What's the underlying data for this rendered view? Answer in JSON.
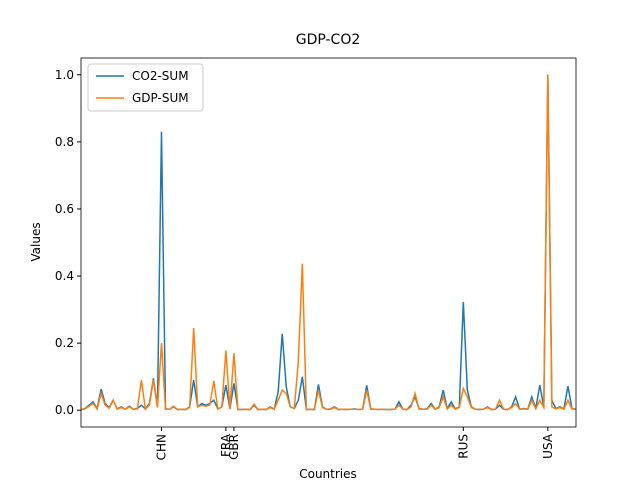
{
  "chart_data": {
    "type": "line",
    "title": "GDP-CO2",
    "xlabel": "Countries",
    "ylabel": "Values",
    "categories": [
      null,
      null,
      null,
      null,
      null,
      null,
      null,
      null,
      null,
      null,
      null,
      null,
      null,
      null,
      null,
      null,
      null,
      null,
      null,
      null,
      "CHN",
      null,
      null,
      null,
      null,
      null,
      null,
      null,
      null,
      null,
      null,
      null,
      null,
      null,
      null,
      null,
      "FRA",
      null,
      "GBR",
      null,
      null,
      null,
      null,
      null,
      null,
      null,
      null,
      null,
      null,
      null,
      null,
      null,
      null,
      null,
      null,
      null,
      null,
      null,
      null,
      null,
      null,
      null,
      null,
      null,
      null,
      null,
      null,
      null,
      null,
      null,
      null,
      null,
      null,
      null,
      null,
      null,
      null,
      null,
      null,
      null,
      null,
      null,
      null,
      null,
      null,
      null,
      null,
      null,
      null,
      null,
      null,
      null,
      null,
      null,
      null,
      "RUS",
      null,
      null,
      null,
      null,
      null,
      null,
      null,
      null,
      null,
      null,
      null,
      null,
      null,
      null,
      null,
      null,
      null,
      null,
      null,
      null,
      "USA",
      null,
      null,
      null,
      null,
      null,
      null,
      null
    ],
    "series": [
      {
        "name": "CO2-SUM",
        "color": "#1f77b4",
        "values": [
          0.002,
          0.005,
          0.015,
          0.025,
          0.005,
          0.063,
          0.02,
          0.008,
          0.03,
          0.004,
          0.01,
          0.003,
          0.012,
          0.003,
          0.005,
          0.015,
          0.004,
          0.02,
          0.095,
          0.01,
          0.83,
          0.004,
          0.003,
          0.01,
          0.002,
          0.003,
          0.002,
          0.01,
          0.09,
          0.01,
          0.02,
          0.015,
          0.02,
          0.03,
          0.004,
          0.01,
          0.075,
          0.004,
          0.08,
          0.002,
          0.002,
          0.003,
          0.002,
          0.015,
          0.002,
          0.003,
          0.002,
          0.01,
          0.003,
          0.055,
          0.228,
          0.07,
          0.01,
          0.005,
          0.03,
          0.1,
          0.002,
          0.003,
          0.002,
          0.077,
          0.01,
          0.003,
          0.004,
          0.01,
          0.002,
          0.003,
          0.002,
          0.003,
          0.004,
          0.002,
          0.003,
          0.074,
          0.004,
          0.003,
          0.002,
          0.003,
          0.002,
          0.002,
          0.003,
          0.025,
          0.003,
          0.002,
          0.015,
          0.04,
          0.005,
          0.003,
          0.004,
          0.02,
          0.003,
          0.01,
          0.06,
          0.005,
          0.025,
          0.004,
          0.01,
          0.323,
          0.06,
          0.01,
          0.003,
          0.002,
          0.003,
          0.01,
          0.002,
          0.003,
          0.015,
          0.003,
          0.002,
          0.01,
          0.04,
          0.003,
          0.005,
          0.003,
          0.04,
          0.005,
          0.075,
          0.01,
          1.0,
          0.03,
          0.005,
          0.01,
          0.004,
          0.072,
          0.005,
          0.003
        ]
      },
      {
        "name": "GDP-SUM",
        "color": "#ff7f0e",
        "values": [
          0.002,
          0.004,
          0.012,
          0.02,
          0.004,
          0.05,
          0.015,
          0.006,
          0.03,
          0.003,
          0.008,
          0.003,
          0.01,
          0.003,
          0.004,
          0.09,
          0.003,
          0.015,
          0.09,
          0.008,
          0.2,
          0.003,
          0.003,
          0.012,
          0.002,
          0.003,
          0.002,
          0.008,
          0.245,
          0.01,
          0.015,
          0.012,
          0.015,
          0.087,
          0.003,
          0.01,
          0.178,
          0.003,
          0.17,
          0.002,
          0.002,
          0.003,
          0.002,
          0.018,
          0.002,
          0.003,
          0.002,
          0.008,
          0.003,
          0.03,
          0.06,
          0.05,
          0.01,
          0.005,
          0.145,
          0.437,
          0.002,
          0.003,
          0.002,
          0.06,
          0.008,
          0.003,
          0.003,
          0.008,
          0.002,
          0.003,
          0.002,
          0.003,
          0.003,
          0.002,
          0.003,
          0.06,
          0.003,
          0.003,
          0.002,
          0.003,
          0.002,
          0.002,
          0.003,
          0.015,
          0.003,
          0.002,
          0.01,
          0.05,
          0.004,
          0.003,
          0.003,
          0.015,
          0.003,
          0.008,
          0.04,
          0.004,
          0.015,
          0.003,
          0.008,
          0.065,
          0.04,
          0.008,
          0.003,
          0.002,
          0.003,
          0.008,
          0.002,
          0.003,
          0.03,
          0.003,
          0.002,
          0.008,
          0.02,
          0.003,
          0.004,
          0.003,
          0.03,
          0.004,
          0.03,
          0.008,
          1.0,
          0.01,
          0.004,
          0.008,
          0.003,
          0.03,
          0.004,
          0.003
        ]
      }
    ],
    "ylim": [
      -0.05,
      1.05
    ],
    "yticks": [
      {
        "value": 0,
        "label": "0.0"
      },
      {
        "value": 0.2,
        "label": "0.2"
      },
      {
        "value": 0.4,
        "label": "0.4"
      },
      {
        "value": 0.6,
        "label": "0.6"
      },
      {
        "value": 0.8,
        "label": "0.8"
      },
      {
        "value": 1,
        "label": "1.0"
      }
    ],
    "legend": "upper left",
    "grid": false
  }
}
